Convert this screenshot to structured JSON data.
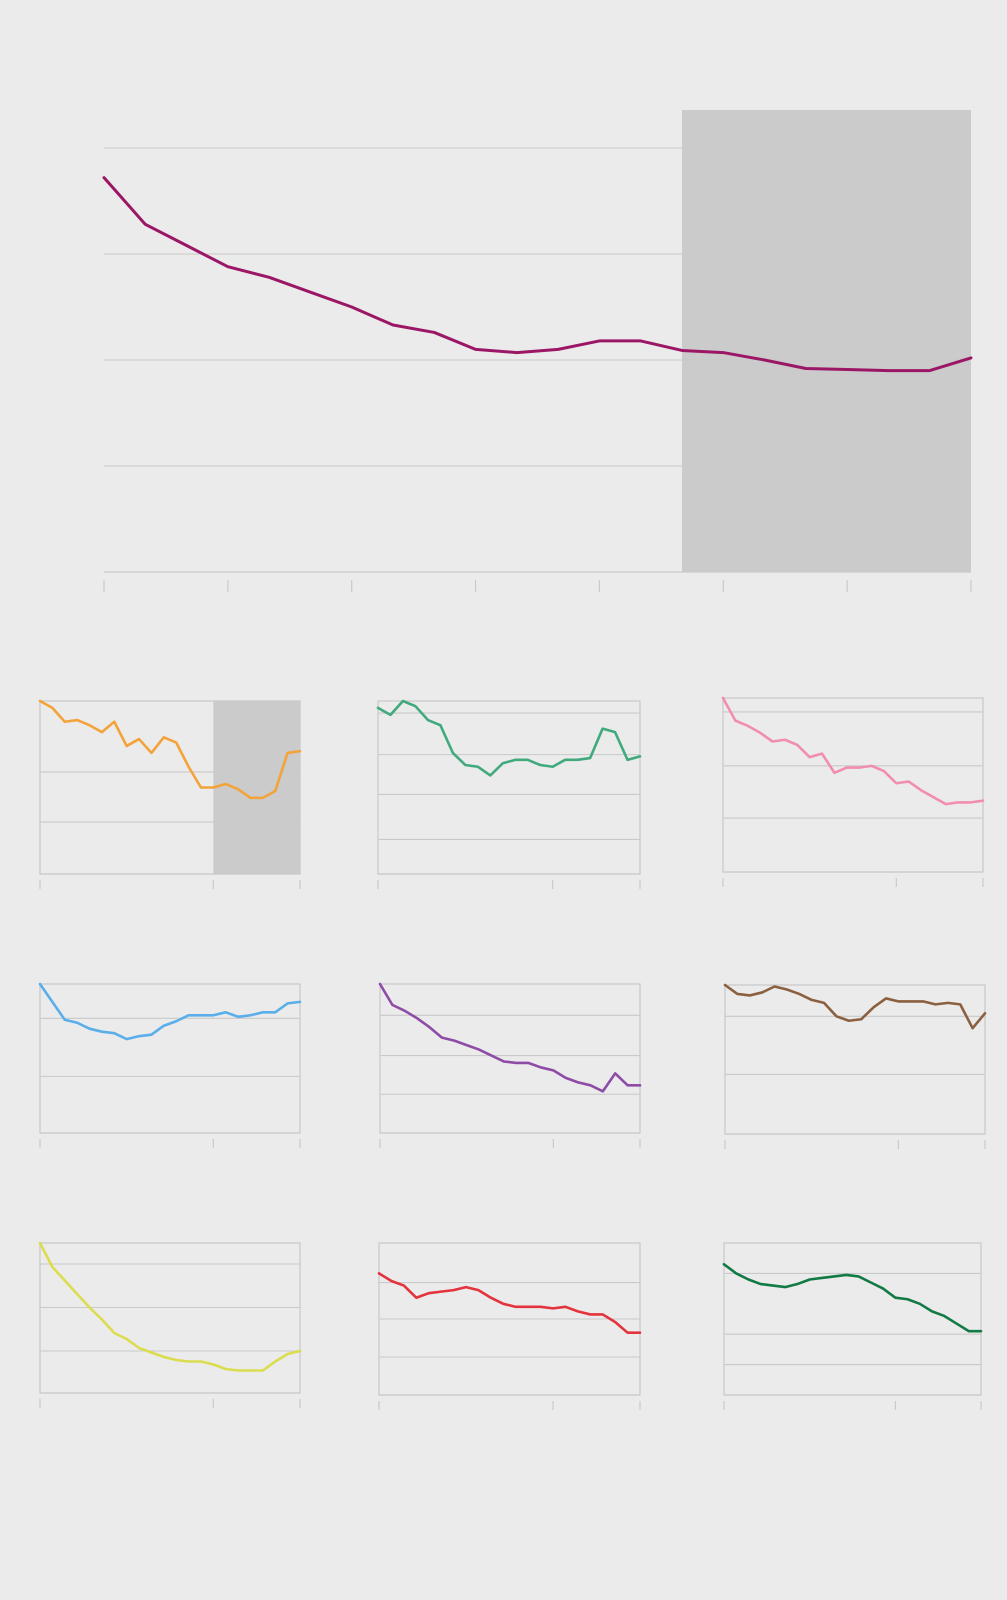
{
  "colors": {
    "background": "#ebebeb",
    "grid": "#c9c9c9",
    "axis": "#c9c9c9",
    "highlight": "#cbcbcb"
  },
  "chart_data": [
    {
      "id": "main",
      "type": "line",
      "highlight": [
        14,
        21
      ],
      "xlim": [
        0,
        21
      ],
      "ylim": [
        0,
        4
      ],
      "grid_y": [
        1,
        2,
        3,
        4
      ],
      "x_ticks": [
        0,
        3,
        6,
        9,
        12,
        15,
        18,
        21
      ],
      "series": [
        {
          "color": "#9b1766",
          "values": [
            3.72,
            3.28,
            3.08,
            2.88,
            2.78,
            2.64,
            2.5,
            2.33,
            2.26,
            2.1,
            2.07,
            2.1,
            2.18,
            2.18,
            2.09,
            2.07,
            2.0,
            1.92,
            1.91,
            1.9,
            1.9,
            2.02
          ]
        }
      ]
    },
    {
      "id": "small-1",
      "type": "line",
      "highlight": [
        14,
        21
      ],
      "xlim": [
        0,
        21
      ],
      "ylim": [
        0,
        1
      ],
      "grid_y": [
        0.3,
        0.59
      ],
      "x_ticks": [
        0,
        14,
        21
      ],
      "series": [
        {
          "color": "#f3a33a",
          "values": [
            1.0,
            0.96,
            0.88,
            0.89,
            0.86,
            0.82,
            0.88,
            0.74,
            0.78,
            0.7,
            0.79,
            0.76,
            0.62,
            0.5,
            0.5,
            0.52,
            0.49,
            0.44,
            0.44,
            0.48,
            0.7,
            0.71
          ]
        }
      ]
    },
    {
      "id": "small-2",
      "type": "line",
      "xlim": [
        0,
        21
      ],
      "ylim": [
        0,
        1
      ],
      "grid_y": [
        0.2,
        0.46,
        0.69,
        0.93
      ],
      "x_ticks": [
        0,
        14,
        21
      ],
      "series": [
        {
          "color": "#41aa7d",
          "values": [
            0.96,
            0.92,
            1.0,
            0.97,
            0.89,
            0.86,
            0.7,
            0.63,
            0.62,
            0.57,
            0.64,
            0.66,
            0.66,
            0.63,
            0.62,
            0.66,
            0.66,
            0.67,
            0.84,
            0.82,
            0.66,
            0.68
          ]
        }
      ]
    },
    {
      "id": "small-3",
      "type": "line",
      "xlim": [
        0,
        21
      ],
      "ylim": [
        0,
        1
      ],
      "grid_y": [
        0.31,
        0.61,
        0.92
      ],
      "x_ticks": [
        0,
        14,
        21
      ],
      "series": [
        {
          "color": "#f28db2",
          "values": [
            1.0,
            0.87,
            0.84,
            0.8,
            0.75,
            0.76,
            0.73,
            0.66,
            0.68,
            0.57,
            0.6,
            0.6,
            0.61,
            0.58,
            0.51,
            0.52,
            0.47,
            0.43,
            0.39,
            0.4,
            0.4,
            0.41
          ]
        }
      ]
    },
    {
      "id": "small-4",
      "type": "line",
      "xlim": [
        0,
        21
      ],
      "ylim": [
        0,
        1
      ],
      "grid_y": [
        0.38,
        0.77
      ],
      "x_ticks": [
        0,
        14,
        21
      ],
      "series": [
        {
          "color": "#5aaee9",
          "values": [
            1.0,
            0.88,
            0.76,
            0.74,
            0.7,
            0.68,
            0.67,
            0.63,
            0.65,
            0.66,
            0.72,
            0.75,
            0.79,
            0.79,
            0.79,
            0.81,
            0.78,
            0.79,
            0.81,
            0.81,
            0.87,
            0.88
          ]
        }
      ]
    },
    {
      "id": "small-5",
      "type": "line",
      "xlim": [
        0,
        21
      ],
      "ylim": [
        0,
        1
      ],
      "grid_y": [
        0.26,
        0.52,
        0.79
      ],
      "x_ticks": [
        0,
        14,
        21
      ],
      "series": [
        {
          "color": "#8e4ca7",
          "values": [
            1.0,
            0.86,
            0.82,
            0.77,
            0.71,
            0.64,
            0.62,
            0.59,
            0.56,
            0.52,
            0.48,
            0.47,
            0.47,
            0.44,
            0.42,
            0.37,
            0.34,
            0.32,
            0.28,
            0.4,
            0.32,
            0.32
          ]
        }
      ]
    },
    {
      "id": "small-6",
      "type": "line",
      "xlim": [
        0,
        21
      ],
      "ylim": [
        0,
        1
      ],
      "grid_y": [
        0.4,
        0.79
      ],
      "x_ticks": [
        0,
        14,
        21
      ],
      "series": [
        {
          "color": "#8b6040",
          "values": [
            1.0,
            0.94,
            0.93,
            0.95,
            0.99,
            0.97,
            0.94,
            0.9,
            0.88,
            0.79,
            0.76,
            0.77,
            0.85,
            0.91,
            0.89,
            0.89,
            0.89,
            0.87,
            0.88,
            0.87,
            0.71,
            0.81
          ]
        }
      ]
    },
    {
      "id": "small-7",
      "type": "line",
      "xlim": [
        0,
        21
      ],
      "ylim": [
        0,
        1
      ],
      "grid_y": [
        0.28,
        0.57,
        0.86
      ],
      "x_ticks": [
        0,
        14,
        21
      ],
      "series": [
        {
          "color": "#dbdc4e",
          "values": [
            1.0,
            0.84,
            0.75,
            0.66,
            0.57,
            0.49,
            0.4,
            0.36,
            0.3,
            0.27,
            0.24,
            0.22,
            0.21,
            0.21,
            0.19,
            0.16,
            0.15,
            0.15,
            0.15,
            0.21,
            0.26,
            0.28
          ]
        }
      ]
    },
    {
      "id": "small-8",
      "type": "line",
      "xlim": [
        0,
        21
      ],
      "ylim": [
        0,
        1
      ],
      "grid_y": [
        0.25,
        0.5,
        0.74
      ],
      "x_ticks": [
        0,
        14,
        21
      ],
      "series": [
        {
          "color": "#e3333c",
          "values": [
            0.8,
            0.75,
            0.72,
            0.64,
            0.67,
            0.68,
            0.69,
            0.71,
            0.69,
            0.64,
            0.6,
            0.58,
            0.58,
            0.58,
            0.57,
            0.58,
            0.55,
            0.53,
            0.53,
            0.48,
            0.41,
            0.41
          ]
        }
      ]
    },
    {
      "id": "small-9",
      "type": "line",
      "xlim": [
        0,
        21
      ],
      "ylim": [
        0,
        1
      ],
      "grid_y": [
        0.2,
        0.4,
        0.8
      ],
      "x_ticks": [
        0,
        14,
        21
      ],
      "series": [
        {
          "color": "#127a45",
          "values": [
            0.86,
            0.8,
            0.76,
            0.73,
            0.72,
            0.71,
            0.73,
            0.76,
            0.77,
            0.78,
            0.79,
            0.78,
            0.74,
            0.7,
            0.64,
            0.63,
            0.6,
            0.55,
            0.52,
            0.47,
            0.42,
            0.42
          ]
        }
      ]
    }
  ]
}
